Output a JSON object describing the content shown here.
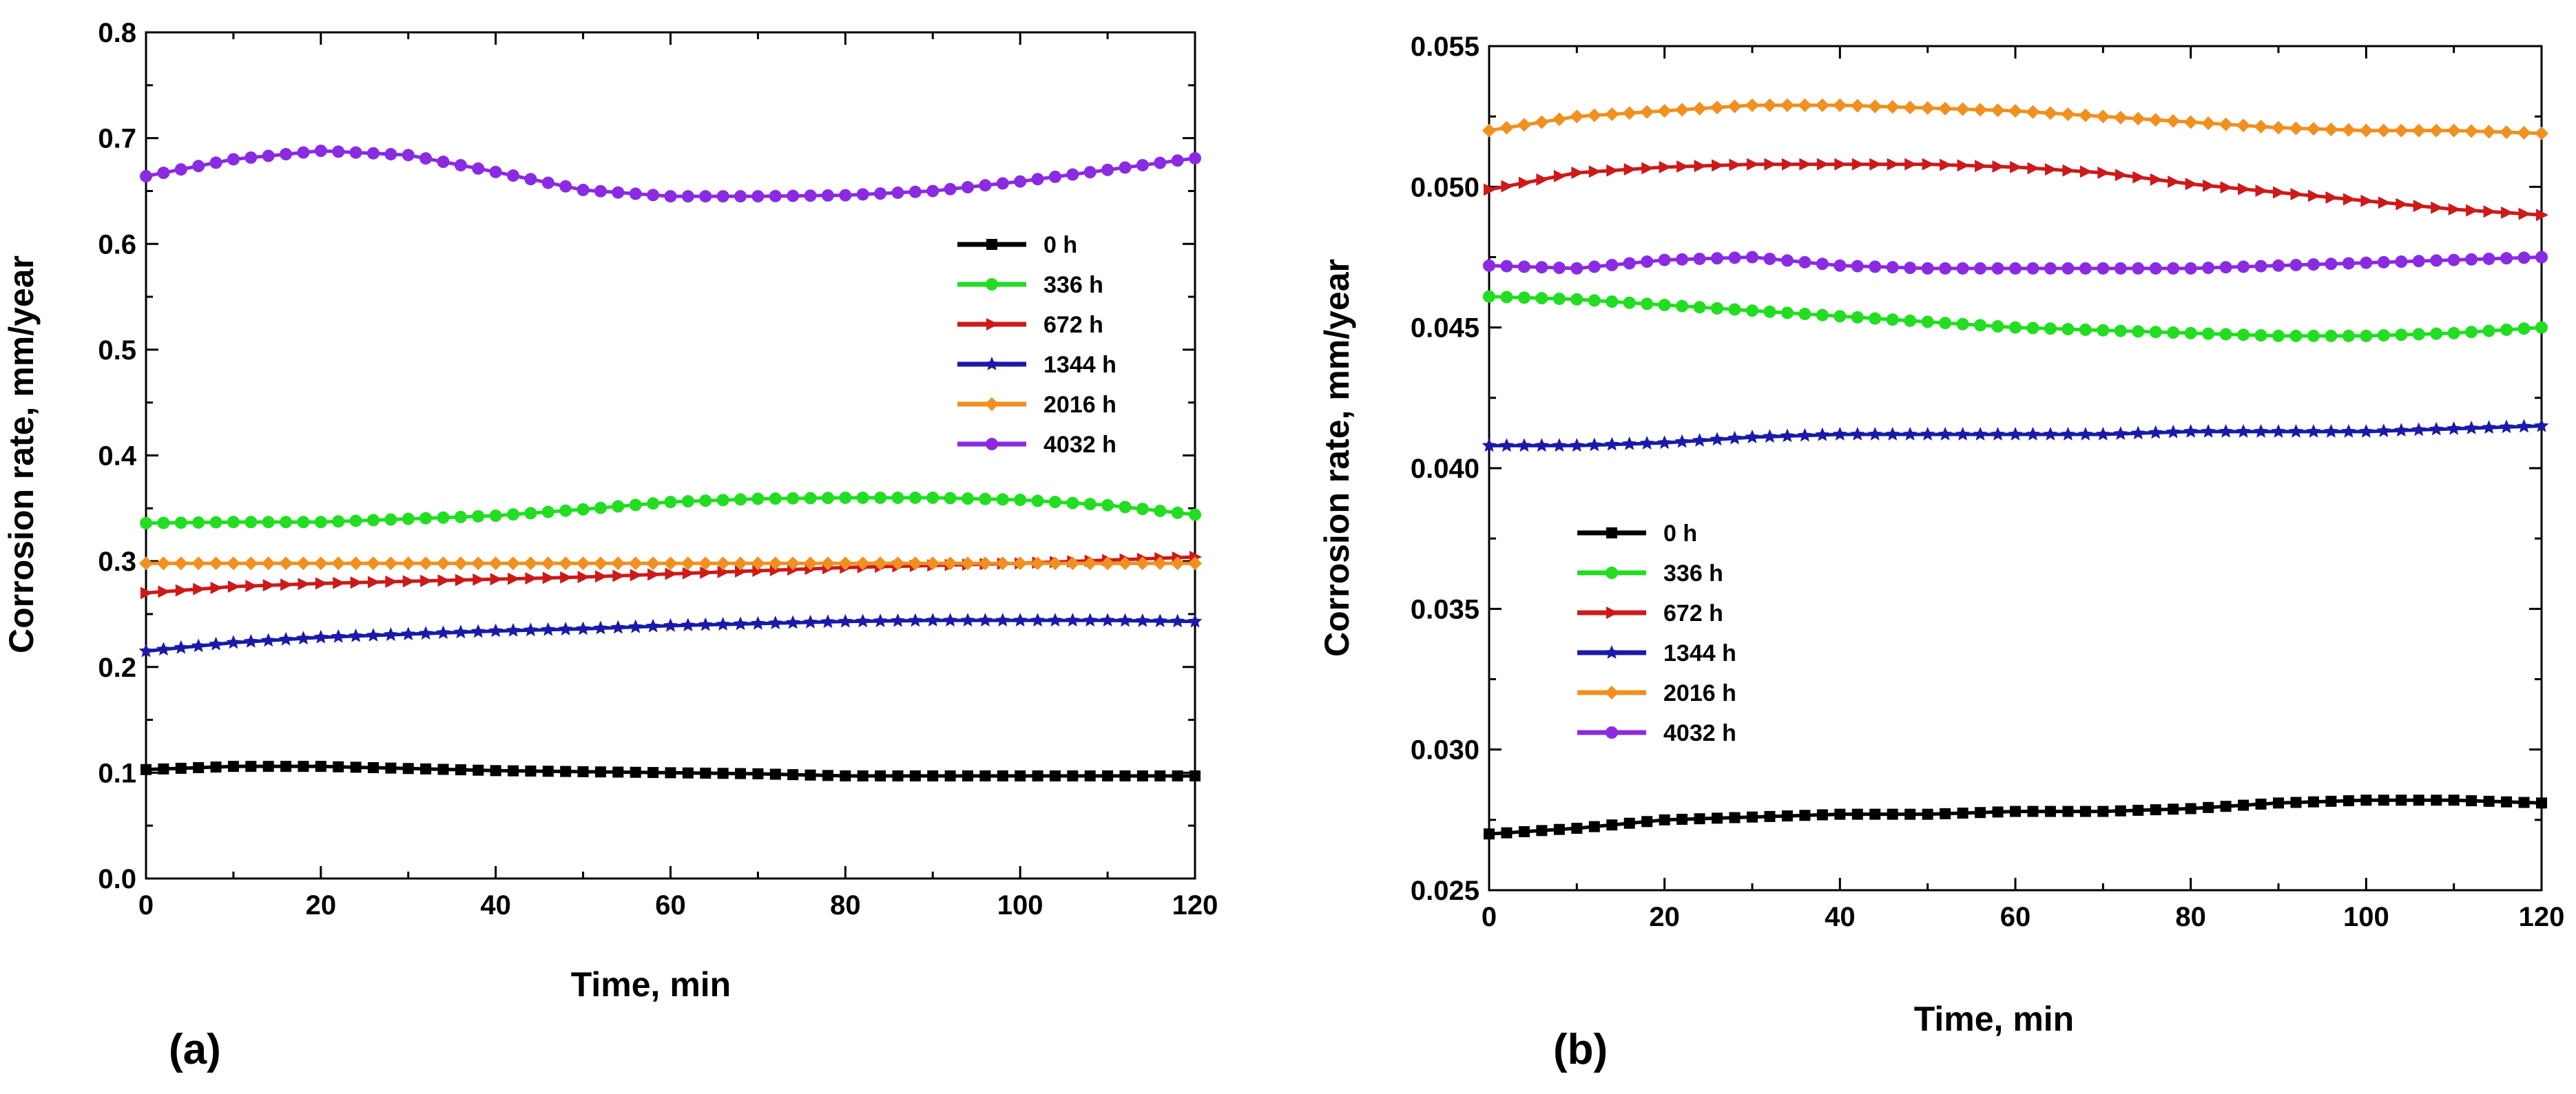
{
  "chart_data": [
    {
      "type": "line",
      "panel_label": "(a)",
      "xlabel": "Time, min",
      "ylabel": "Corrosion rate, mm/year",
      "xlim": [
        0,
        120
      ],
      "ylim": [
        0.0,
        0.8
      ],
      "xticks": [
        0,
        20,
        40,
        60,
        80,
        100,
        120
      ],
      "xtick_labels": [
        "0",
        "20",
        "40",
        "60",
        "80",
        "100",
        "120"
      ],
      "yticks": [
        0.0,
        0.1,
        0.2,
        0.3,
        0.4,
        0.5,
        0.6,
        0.7,
        0.8
      ],
      "ytick_labels": [
        "0.0",
        "0.1",
        "0.2",
        "0.3",
        "0.4",
        "0.5",
        "0.6",
        "0.7",
        "0.8"
      ],
      "legend_position": "center-right",
      "x": [
        0,
        10,
        20,
        30,
        40,
        50,
        60,
        70,
        80,
        90,
        100,
        110,
        120
      ],
      "series": [
        {
          "name": "0 h",
          "color": "#000000",
          "marker": "square",
          "values": [
            0.103,
            0.106,
            0.106,
            0.104,
            0.102,
            0.101,
            0.1,
            0.099,
            0.097,
            0.097,
            0.097,
            0.097,
            0.097
          ]
        },
        {
          "name": "336 h",
          "color": "#22dd22",
          "marker": "circle",
          "values": [
            0.336,
            0.337,
            0.337,
            0.34,
            0.343,
            0.349,
            0.356,
            0.359,
            0.36,
            0.36,
            0.358,
            0.353,
            0.344
          ]
        },
        {
          "name": "672 h",
          "color": "#cc1a1a",
          "marker": "triangle-right",
          "values": [
            0.27,
            0.276,
            0.279,
            0.281,
            0.283,
            0.285,
            0.288,
            0.291,
            0.294,
            0.296,
            0.298,
            0.301,
            0.304
          ]
        },
        {
          "name": "1344 h",
          "color": "#1a1aa8",
          "marker": "star",
          "values": [
            0.215,
            0.223,
            0.228,
            0.231,
            0.234,
            0.236,
            0.239,
            0.241,
            0.243,
            0.244,
            0.244,
            0.244,
            0.243
          ]
        },
        {
          "name": "2016 h",
          "color": "#f09020",
          "marker": "diamond",
          "values": [
            0.298,
            0.298,
            0.298,
            0.298,
            0.298,
            0.298,
            0.298,
            0.298,
            0.298,
            0.298,
            0.298,
            0.298,
            0.298
          ]
        },
        {
          "name": "4032 h",
          "color": "#8a2be2",
          "marker": "circle",
          "values": [
            0.664,
            0.68,
            0.688,
            0.684,
            0.668,
            0.651,
            0.645,
            0.645,
            0.646,
            0.65,
            0.659,
            0.67,
            0.681
          ]
        }
      ]
    },
    {
      "type": "line",
      "panel_label": "(b)",
      "xlabel": "Time, min",
      "ylabel": "Corrosion rate, mm/year",
      "xlim": [
        0,
        120
      ],
      "ylim": [
        0.025,
        0.055
      ],
      "xticks": [
        0,
        20,
        40,
        60,
        80,
        100,
        120
      ],
      "xtick_labels": [
        "0",
        "20",
        "40",
        "60",
        "80",
        "100",
        "120"
      ],
      "yticks": [
        0.025,
        0.03,
        0.035,
        0.04,
        0.045,
        0.05,
        0.055
      ],
      "ytick_labels": [
        "0.025",
        "0.030",
        "0.035",
        "0.040",
        "0.045",
        "0.050",
        "0.055"
      ],
      "legend_position": "center-left",
      "x": [
        0,
        10,
        20,
        30,
        40,
        50,
        60,
        70,
        80,
        90,
        100,
        110,
        120
      ],
      "series": [
        {
          "name": "0 h",
          "color": "#000000",
          "marker": "square",
          "values": [
            0.027,
            0.0272,
            0.0275,
            0.0276,
            0.0277,
            0.0277,
            0.0278,
            0.0278,
            0.0279,
            0.0281,
            0.0282,
            0.0282,
            0.0281
          ]
        },
        {
          "name": "336 h",
          "color": "#22dd22",
          "marker": "circle",
          "values": [
            0.0461,
            0.046,
            0.0458,
            0.0456,
            0.0454,
            0.0452,
            0.045,
            0.0449,
            0.0448,
            0.0447,
            0.0447,
            0.0448,
            0.045
          ]
        },
        {
          "name": "672 h",
          "color": "#cc1a1a",
          "marker": "triangle-right",
          "values": [
            0.0499,
            0.0505,
            0.0507,
            0.0508,
            0.0508,
            0.0508,
            0.0507,
            0.0505,
            0.0501,
            0.0498,
            0.0495,
            0.0492,
            0.049
          ]
        },
        {
          "name": "1344 h",
          "color": "#1a1aa8",
          "marker": "star",
          "values": [
            0.0408,
            0.0408,
            0.0409,
            0.0411,
            0.0412,
            0.0412,
            0.0412,
            0.0412,
            0.0413,
            0.0413,
            0.0413,
            0.0414,
            0.0415
          ]
        },
        {
          "name": "2016 h",
          "color": "#f09020",
          "marker": "diamond",
          "values": [
            0.052,
            0.0525,
            0.0527,
            0.0529,
            0.0529,
            0.0528,
            0.0527,
            0.0525,
            0.0523,
            0.0521,
            0.052,
            0.052,
            0.0519
          ]
        },
        {
          "name": "4032 h",
          "color": "#8a2be2",
          "marker": "circle",
          "values": [
            0.0472,
            0.0471,
            0.0474,
            0.0475,
            0.0472,
            0.0471,
            0.0471,
            0.0471,
            0.0471,
            0.0472,
            0.0473,
            0.0474,
            0.0475
          ]
        }
      ]
    }
  ]
}
